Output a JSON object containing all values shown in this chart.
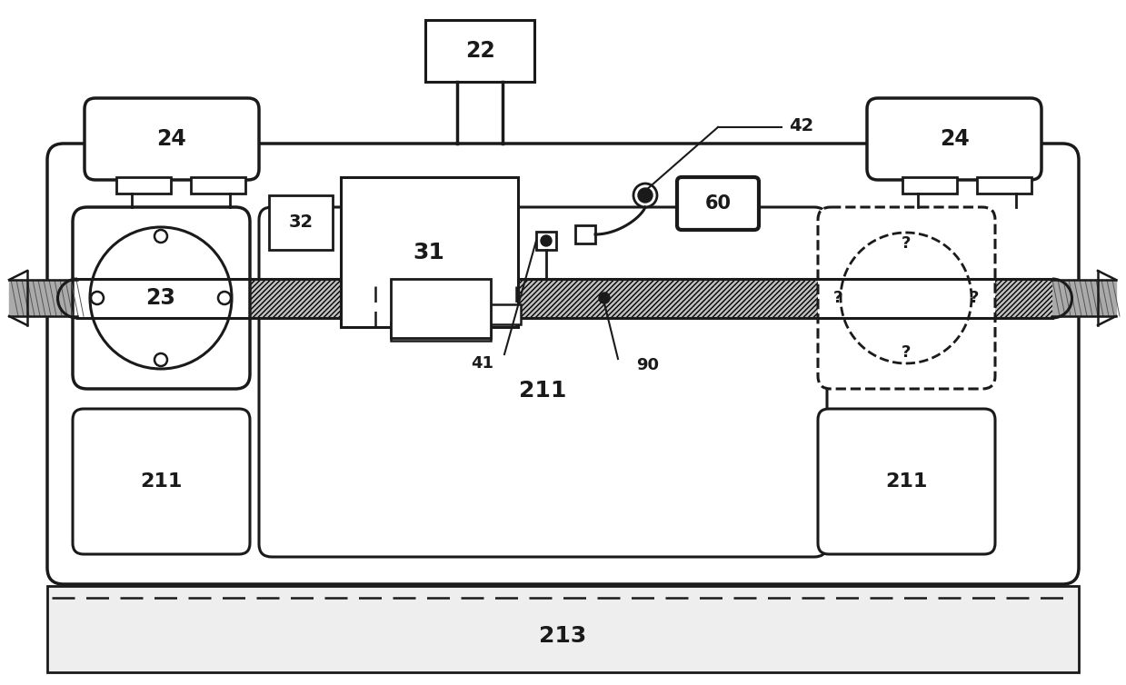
{
  "bg": "#ffffff",
  "lc": "#1a1a1a",
  "figsize": [
    12.39,
    7.54
  ],
  "dpi": 100
}
